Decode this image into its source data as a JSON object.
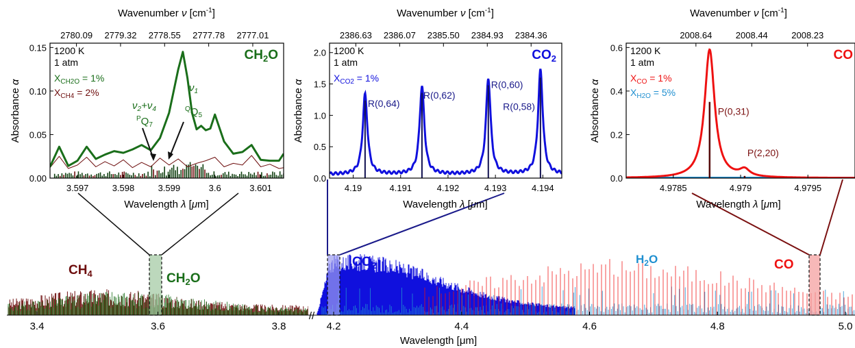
{
  "figure": {
    "overview_xlabel": "Wavelength [μm]",
    "overview_ticks_left": [
      "3.4",
      "3.6",
      "3.8"
    ],
    "overview_ticks_right": [
      "4.2",
      "4.4",
      "4.6",
      "4.8",
      "5.0"
    ],
    "break_mark": "//",
    "species_labels": [
      "CH4",
      "CH2O",
      "CO2",
      "H2O",
      "CO"
    ]
  },
  "colors": {
    "ch2o": "#1a6e1a",
    "ch4": "#6e0f0f",
    "co2": "#1010dd",
    "h2o": "#1f8fd0",
    "co": "#ee1111",
    "co_zoom_link": "#7a1010",
    "co2_zoom_link": "#1a1a8a"
  },
  "chart_data": [
    {
      "type": "line",
      "panel": "ch2o",
      "title": "CH2O",
      "top_axis_label": "Wavenumber ν [cm-1]",
      "top_ticks": [
        "2780.09",
        "2779.32",
        "2778.55",
        "2777.78",
        "2777.01"
      ],
      "xlabel": "Wavelength λ [μm]",
      "ylabel": "Absorbance α",
      "x_ticks": [
        3.597,
        3.598,
        3.599,
        3.6,
        3.601
      ],
      "y_ticks": [
        "0.00",
        "0.05",
        "0.10",
        "0.15"
      ],
      "xlim": [
        3.5964,
        3.6015
      ],
      "ylim": [
        0,
        0.155
      ],
      "conditions": [
        "1200 K",
        "1 atm"
      ],
      "mole_fractions": [
        {
          "species": "X",
          "sub": "CH2O",
          "value": " = 1%",
          "color": "ch2o"
        },
        {
          "species": "X",
          "sub": "CH4",
          "value": " = 2%",
          "color": "ch4"
        }
      ],
      "annotations": [
        {
          "text": "ν2+ν4",
          "x": 3.5985,
          "y": 0.077
        },
        {
          "text": "PQ7",
          "x": 3.5986,
          "y": 0.066
        },
        {
          "text": "ν1",
          "x": 3.5996,
          "y": 0.095
        },
        {
          "text": "QQ5",
          "x": 3.5997,
          "y": 0.08
        }
      ],
      "series": [
        {
          "name": "CH2O",
          "color": "ch2o",
          "x": [
            3.5964,
            3.5966,
            3.5968,
            3.597,
            3.5972,
            3.5974,
            3.5976,
            3.5978,
            3.598,
            3.5982,
            3.5984,
            3.5986,
            3.5988,
            3.599,
            3.5991,
            3.5992,
            3.5993,
            3.5994,
            3.5995,
            3.5996,
            3.5997,
            3.5998,
            3.5999,
            3.6,
            3.6002,
            3.6004,
            3.6006,
            3.6008,
            3.601,
            3.6012,
            3.6014,
            3.6015
          ],
          "y": [
            0.013,
            0.036,
            0.014,
            0.02,
            0.036,
            0.022,
            0.027,
            0.031,
            0.029,
            0.033,
            0.038,
            0.032,
            0.046,
            0.075,
            0.1,
            0.125,
            0.145,
            0.115,
            0.075,
            0.056,
            0.06,
            0.055,
            0.057,
            0.073,
            0.042,
            0.028,
            0.03,
            0.038,
            0.021,
            0.02,
            0.02,
            0.028
          ]
        },
        {
          "name": "CH4",
          "color": "ch4",
          "x": [
            3.5964,
            3.5966,
            3.5968,
            3.597,
            3.5972,
            3.5974,
            3.5976,
            3.5978,
            3.598,
            3.5982,
            3.5984,
            3.5986,
            3.5988,
            3.599,
            3.5992,
            3.5994,
            3.5996,
            3.5998,
            3.6,
            3.6002,
            3.6004,
            3.6006,
            3.6008,
            3.601,
            3.6012,
            3.6014,
            3.6015
          ],
          "y": [
            0.012,
            0.025,
            0.011,
            0.015,
            0.024,
            0.013,
            0.019,
            0.014,
            0.021,
            0.012,
            0.018,
            0.013,
            0.023,
            0.015,
            0.022,
            0.013,
            0.017,
            0.02,
            0.024,
            0.013,
            0.017,
            0.015,
            0.026,
            0.013,
            0.016,
            0.011,
            0.012
          ]
        }
      ],
      "sticks_x_range": [
        3.5965,
        3.6015
      ]
    },
    {
      "type": "line",
      "panel": "co2",
      "title": "CO2",
      "top_axis_label": "Wavenumber ν [cm-1]",
      "top_ticks": [
        "2386.63",
        "2386.07",
        "2385.50",
        "2384.93",
        "2384.36"
      ],
      "xlabel": "Wavelength λ [μm]",
      "ylabel": "Absorbance α",
      "x_ticks": [
        4.19,
        4.191,
        4.192,
        4.193,
        4.194
      ],
      "y_ticks": [
        "0.0",
        "0.5",
        "1.0",
        "1.5",
        "2.0"
      ],
      "xlim": [
        4.1895,
        4.1944
      ],
      "ylim": [
        0,
        2.15
      ],
      "conditions": [
        "1200 K",
        "1 atm"
      ],
      "mole_fractions": [
        {
          "species": "X",
          "sub": "CO2",
          "value": " = 1%",
          "color": "co2"
        }
      ],
      "peaks": [
        {
          "label": "R(0,64)",
          "x": 4.19025,
          "y": 1.33
        },
        {
          "label": "R(0,62)",
          "x": 4.19145,
          "y": 1.46
        },
        {
          "label": "R(0,60)",
          "x": 4.19285,
          "y": 1.59
        },
        {
          "label": "R(0,58)",
          "x": 4.19395,
          "y": 1.72
        }
      ],
      "baseline": 0.06
    },
    {
      "type": "line",
      "panel": "co",
      "title": "CO",
      "top_axis_label": "Wavenumber ν [cm-1]",
      "top_ticks": [
        "2008.64",
        "2008.44",
        "2008.23"
      ],
      "xlabel": "Wavelength λ [μm]",
      "ylabel": "Absorbance α",
      "x_ticks": [
        4.9785,
        4.979,
        4.9795
      ],
      "y_ticks": [
        "0.0",
        "0.2",
        "0.4",
        "0.6"
      ],
      "xlim": [
        4.97815,
        4.97985
      ],
      "ylim": [
        0,
        0.62
      ],
      "conditions": [
        "1200 K",
        "1 atm"
      ],
      "mole_fractions": [
        {
          "species": "X",
          "sub": "CO",
          "value": " = 1%",
          "color": "co"
        },
        {
          "species": "X",
          "sub": "H2O",
          "value": " = 5%",
          "color": "h2o"
        }
      ],
      "peaks": [
        {
          "label": "P(0,31)",
          "x": 4.97877,
          "y": 0.59,
          "stick": 0.35
        },
        {
          "label": "P(2,20)",
          "x": 4.97903,
          "y": 0.032,
          "stick": 0.01
        }
      ]
    }
  ]
}
